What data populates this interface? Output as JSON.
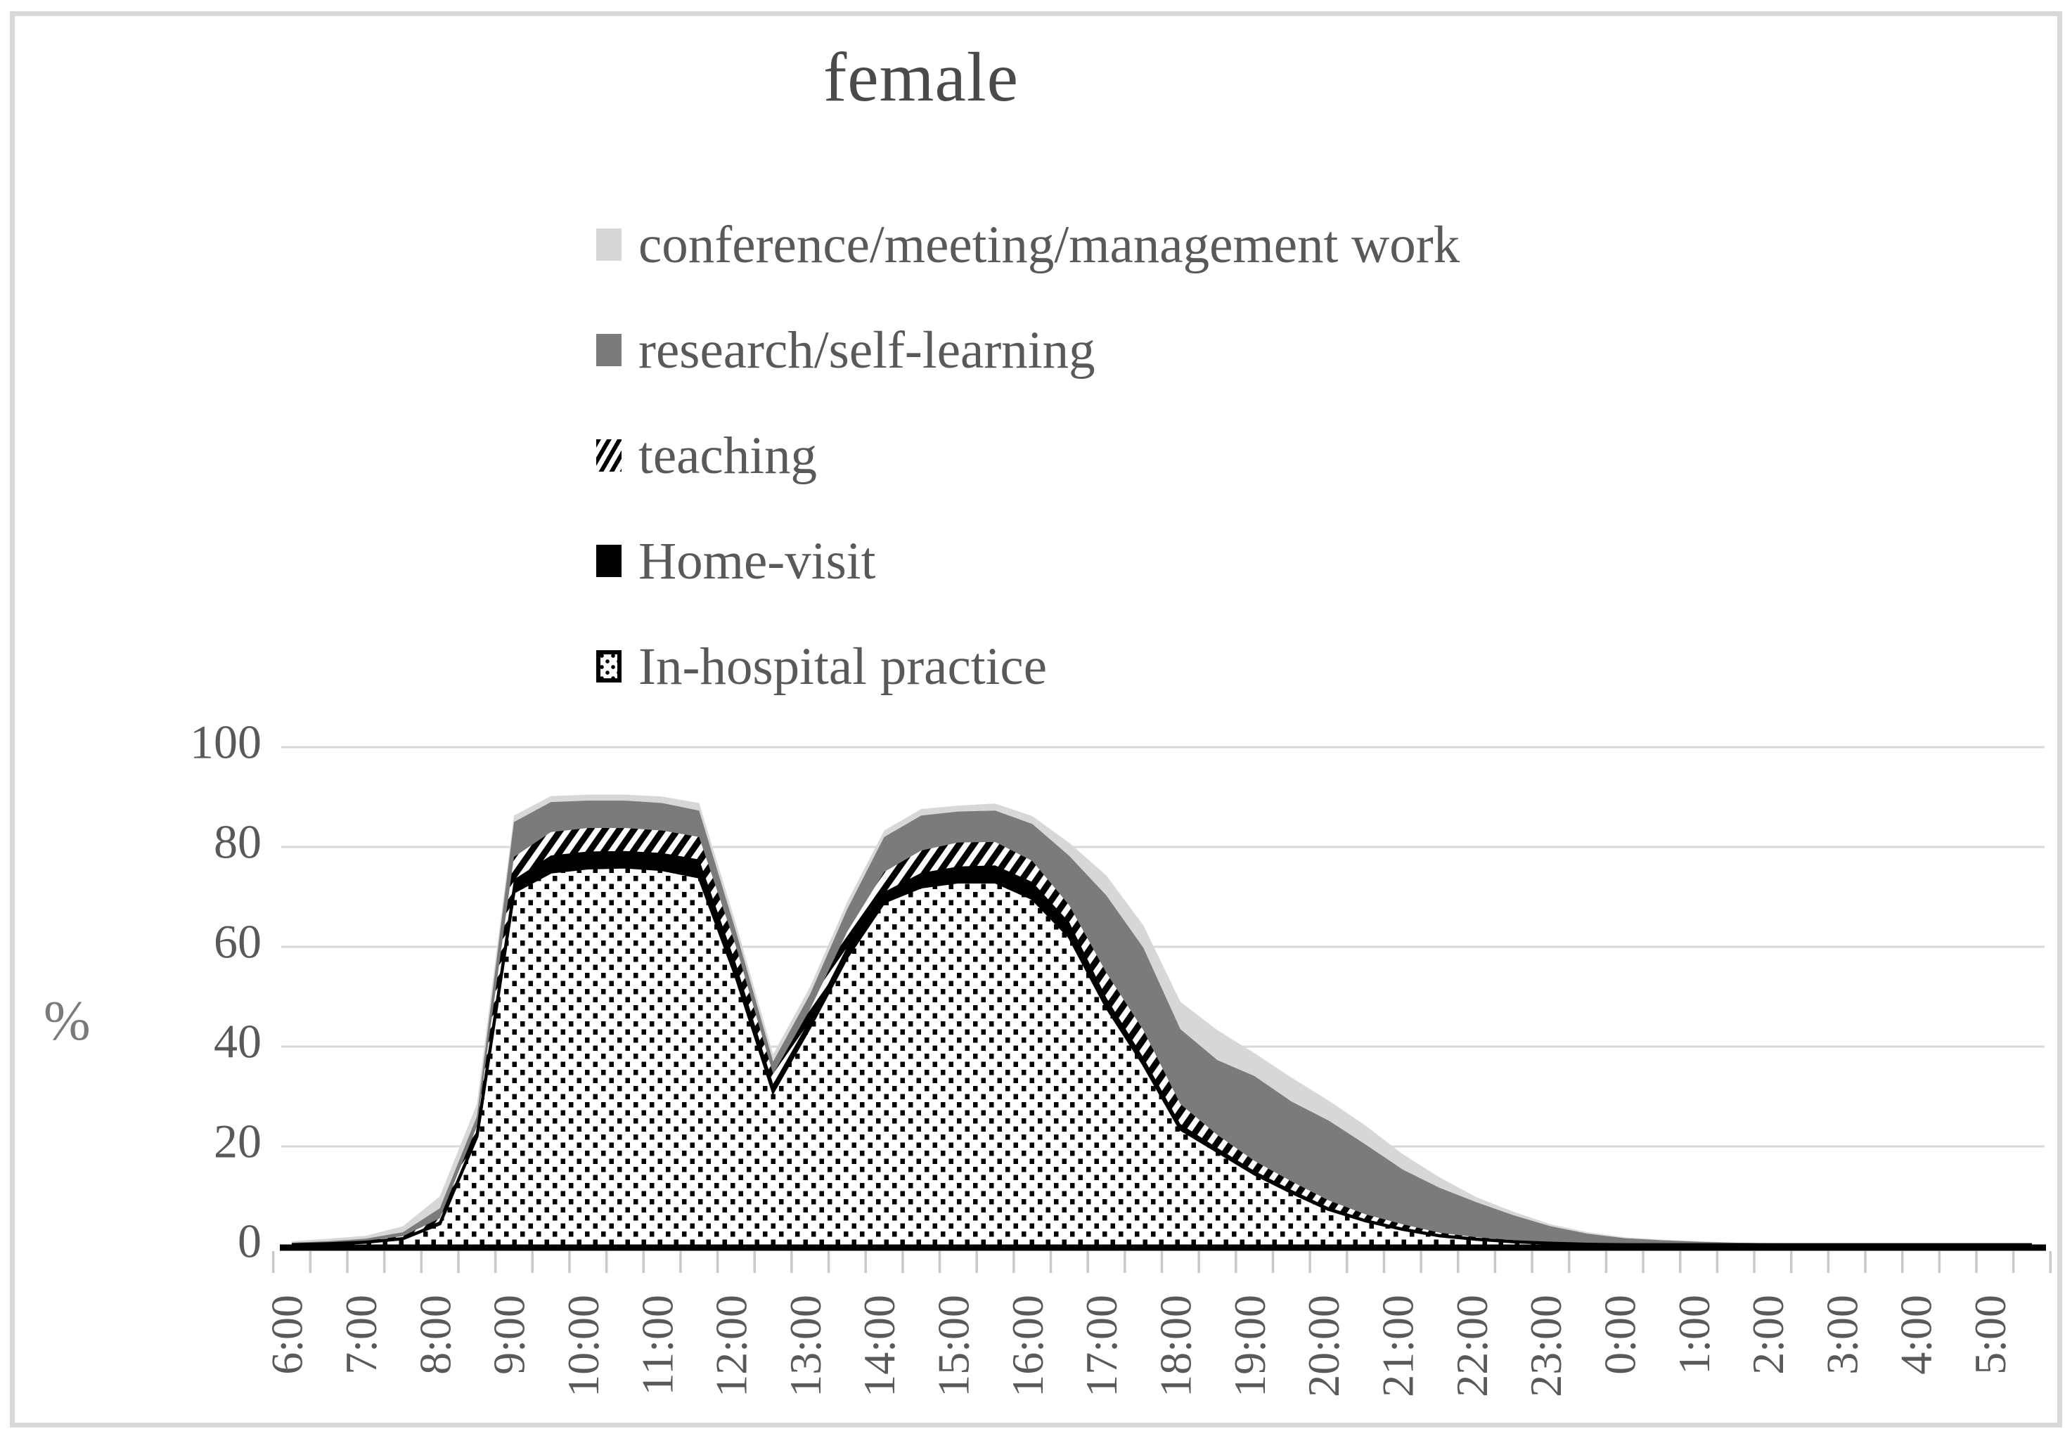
{
  "figure": {
    "title": "female",
    "y_axis_unit": "%",
    "legend": [
      {
        "label": "conference/meeting/management work",
        "swatch": "conference-light-gray"
      },
      {
        "label": "research/self-learning",
        "swatch": "research-dark-gray"
      },
      {
        "label": "teaching",
        "swatch": "teaching-diagonal-hatch"
      },
      {
        "label": "Home-visit",
        "swatch": "home-visit-black"
      },
      {
        "label": "In-hospital practice",
        "swatch": "in-hospital-dotted"
      }
    ]
  },
  "colors": {
    "conference": "#d7d7d7",
    "research": "#7b7b7b",
    "home_visit": "#000000",
    "gridline": "#d9d9d9",
    "axis_line": "#000000",
    "tick": "#c9c9c9",
    "text": "#595959",
    "title_text": "#4a4a4a"
  },
  "chart_data": {
    "type": "area",
    "stacked": true,
    "title": "female",
    "xlabel": "",
    "ylabel": "%",
    "ylim": [
      0,
      100
    ],
    "yticks": [
      0,
      20,
      40,
      60,
      80,
      100
    ],
    "grid": true,
    "legend_position": "top",
    "x": [
      "6:00",
      "6:30",
      "7:00",
      "7:30",
      "8:00",
      "8:30",
      "9:00",
      "9:30",
      "10:00",
      "10:30",
      "11:00",
      "11:30",
      "12:00",
      "12:30",
      "13:00",
      "13:30",
      "14:00",
      "14:30",
      "15:00",
      "15:30",
      "16:00",
      "16:30",
      "17:00",
      "17:30",
      "18:00",
      "18:30",
      "19:00",
      "19:30",
      "20:00",
      "20:30",
      "21:00",
      "21:30",
      "22:00",
      "22:30",
      "23:00",
      "23:30",
      "0:00",
      "0:30",
      "1:00",
      "1:30",
      "2:00",
      "2:30",
      "3:00",
      "3:30",
      "4:00",
      "4:30",
      "5:00",
      "5:30"
    ],
    "x_tick_labels": [
      "6:00",
      "7:00",
      "8:00",
      "9:00",
      "10:00",
      "11:00",
      "12:00",
      "13:00",
      "14:00",
      "15:00",
      "16:00",
      "17:00",
      "18:00",
      "19:00",
      "20:00",
      "21:00",
      "22:00",
      "23:00",
      "0:00",
      "1:00",
      "2:00",
      "3:00",
      "4:00",
      "5:00"
    ],
    "series": [
      {
        "name": "In-hospital practice",
        "style": "dots",
        "values": [
          0.3,
          0.5,
          0.8,
          1.5,
          4.5,
          22,
          71,
          75,
          75.8,
          76,
          75.5,
          74,
          54,
          31,
          44,
          58,
          69,
          72,
          73,
          73,
          69.7,
          62,
          48,
          36.5,
          23.5,
          19,
          14.5,
          10.8,
          7.4,
          5.1,
          3.4,
          2.1,
          1.4,
          0.9,
          0.6,
          0.4,
          0.3,
          0.3,
          0.3,
          0.3,
          0.3,
          0.3,
          0.3,
          0.3,
          0.3,
          0.3,
          0.3,
          0.3
        ]
      },
      {
        "name": "Home-visit",
        "style": "solid-black",
        "values": [
          0.1,
          0.1,
          0.1,
          0.2,
          0.5,
          0.8,
          2.5,
          3.3,
          3.3,
          3.2,
          3.3,
          3.5,
          2.5,
          1.5,
          1.5,
          2.0,
          2.0,
          2.8,
          3.1,
          3.3,
          3.3,
          2.9,
          1.8,
          1.3,
          1.0,
          0.7,
          0.6,
          0.5,
          0.4,
          0.3,
          0.3,
          0.2,
          0.1,
          0.1,
          0.1,
          0.05,
          0.05,
          0,
          0,
          0,
          0,
          0,
          0,
          0,
          0,
          0,
          0,
          0
        ]
      },
      {
        "name": "teaching",
        "style": "hatch",
        "values": [
          0.1,
          0.1,
          0.2,
          0.3,
          0.6,
          1.2,
          4.5,
          4.7,
          4.7,
          4.6,
          4.5,
          4.5,
          3.5,
          2.0,
          2.0,
          3.0,
          4.0,
          4.5,
          4.8,
          4.7,
          4.2,
          3.4,
          5.0,
          5.5,
          4.0,
          2.6,
          2.0,
          1.7,
          1.4,
          1.0,
          0.7,
          0.4,
          0.3,
          0.2,
          0.1,
          0.05,
          0.05,
          0,
          0,
          0,
          0,
          0,
          0,
          0,
          0,
          0,
          0,
          0
        ]
      },
      {
        "name": "research/self-learning",
        "style": "solid-dark-gray",
        "values": [
          0.2,
          0.3,
          0.4,
          0.8,
          2.0,
          2.0,
          7.0,
          6.0,
          5.5,
          5.5,
          5.5,
          5.3,
          3.0,
          2.5,
          3.0,
          4.5,
          7.0,
          7.0,
          6.2,
          6.3,
          7.4,
          9.9,
          15.5,
          16.5,
          15.0,
          15.0,
          17.0,
          16.0,
          16.0,
          14.0,
          11.0,
          9.0,
          7.0,
          5.0,
          3.2,
          2.0,
          1.2,
          0.9,
          0.6,
          0.4,
          0.3,
          0.2,
          0.2,
          0.2,
          0.2,
          0.2,
          0.2,
          0.2
        ]
      },
      {
        "name": "conference/meeting/management work",
        "style": "solid-light-gray",
        "values": [
          0.3,
          0.5,
          0.6,
          1.2,
          2.4,
          2.5,
          1.3,
          1.2,
          1.2,
          1.2,
          1.3,
          1.5,
          1.5,
          1.5,
          1.5,
          1.5,
          1.3,
          1.3,
          1.2,
          1.4,
          1.6,
          2.6,
          4.0,
          4.5,
          5.5,
          6.0,
          4.6,
          4.8,
          4.0,
          3.8,
          3.1,
          2.1,
          1.0,
          0.7,
          0.4,
          0.3,
          0.2,
          0.1,
          0.1,
          0,
          0,
          0,
          0,
          0,
          0,
          0,
          0,
          0
        ]
      }
    ]
  }
}
